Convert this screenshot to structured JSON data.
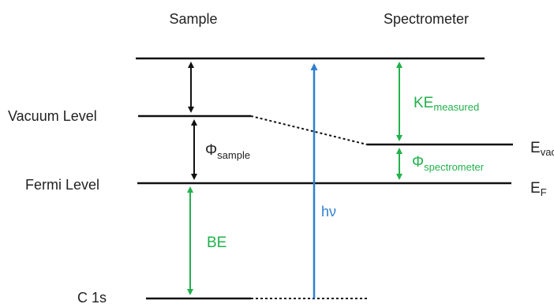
{
  "header": {
    "sample": "Sample",
    "spectrometer": "Spectrometer"
  },
  "levels": {
    "vacuum": "Vacuum Level",
    "fermi": "Fermi Level",
    "core": "C 1s"
  },
  "quantities": {
    "phi_sample": {
      "symbol": "Φ",
      "sub": "sample"
    },
    "phi_spectrometer": {
      "symbol": "Φ",
      "sub": "spectrometer"
    },
    "ke_measured": {
      "symbol": "KE",
      "sub": "measured"
    },
    "binding_energy": "BE",
    "photon": "hν",
    "e_vac": {
      "symbol": "E",
      "sub": "vac"
    },
    "e_f": {
      "symbol": "E",
      "sub": "F"
    }
  },
  "colors": {
    "line": "#111111",
    "green": "#22b14c",
    "blue": "#2f7fd1",
    "text": "#222222"
  }
}
